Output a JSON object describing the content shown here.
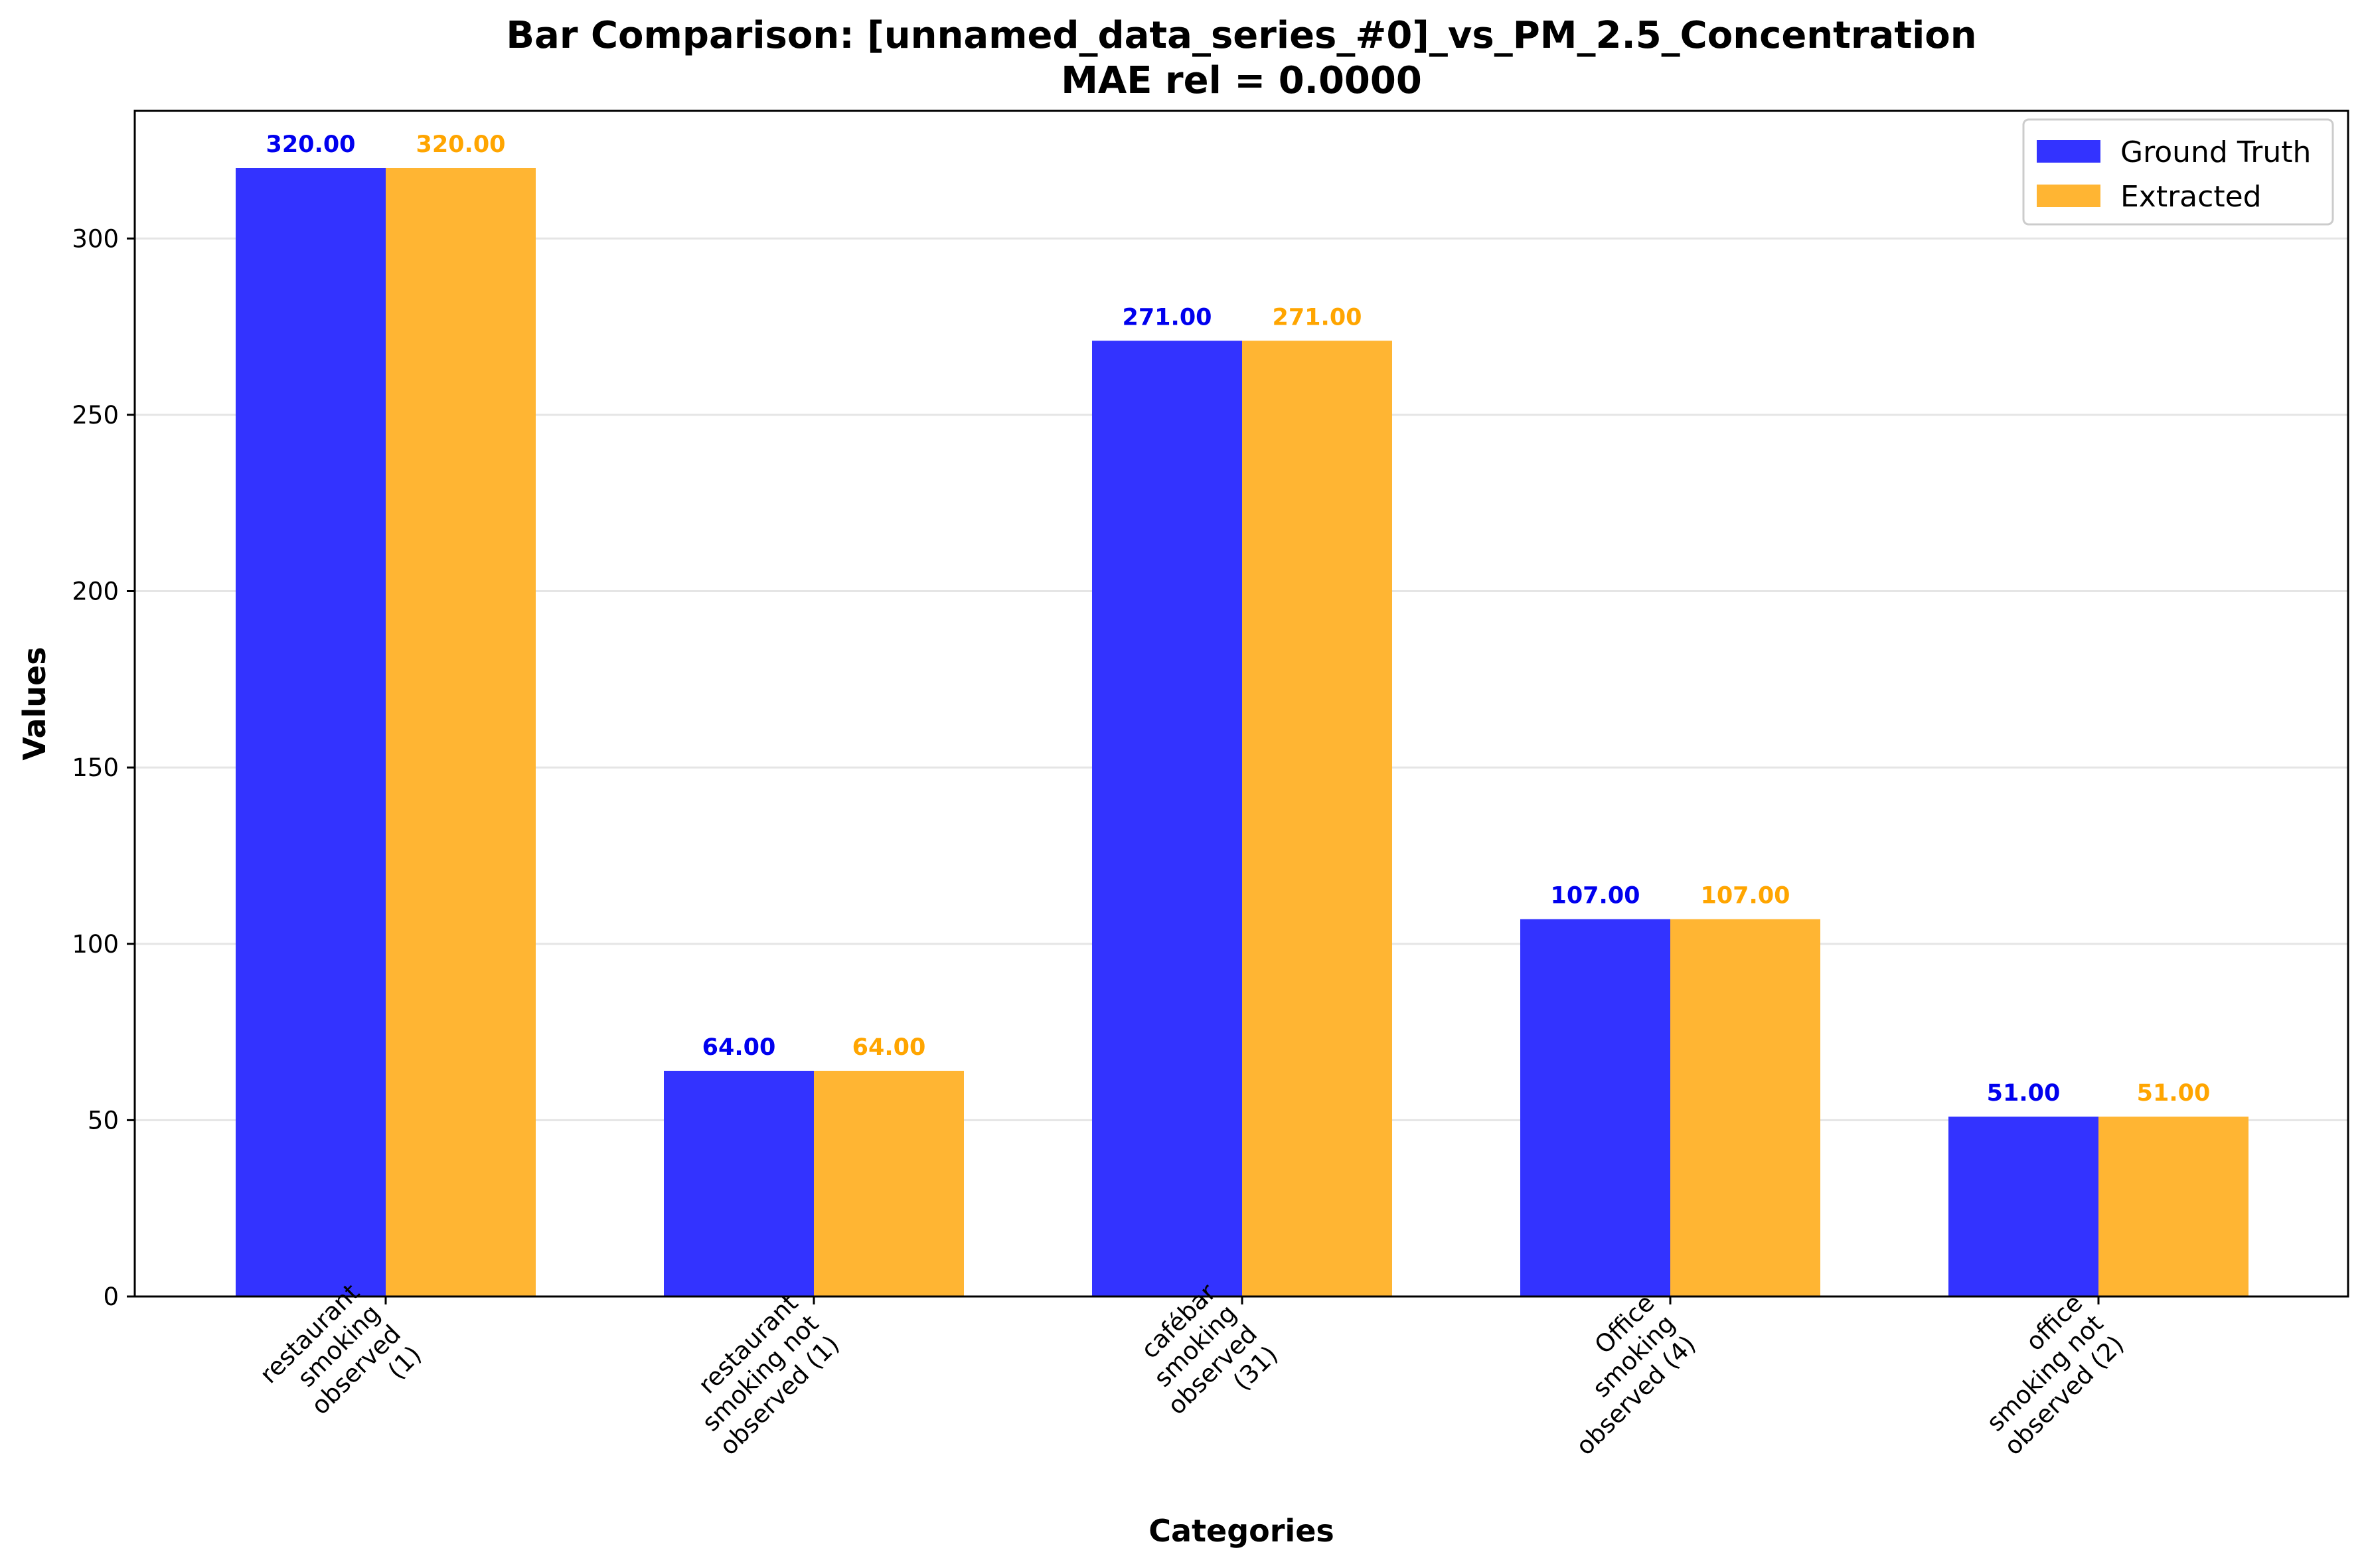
{
  "chart_data": {
    "type": "bar",
    "title": "Bar Comparison: [unnamed_data_series_#0]_vs_PM_2.5_Concentration",
    "subtitle": "MAE rel = 0.0000",
    "xlabel": "Categories",
    "ylabel": "Values",
    "ylim": [
      0,
      336
    ],
    "yticks": [
      "0",
      "50",
      "100",
      "150",
      "200",
      "250",
      "300"
    ],
    "grid": true,
    "legend_position": "top-right",
    "categories": [
      [
        "restaurant",
        "smoking",
        "observed",
        "(1)"
      ],
      [
        "restaurant",
        "smoking not",
        "observed (1)"
      ],
      [
        "cafébar",
        "smoking",
        "observed",
        "(31)"
      ],
      [
        "Office",
        "smoking",
        "observed (4)"
      ],
      [
        "office",
        "smoking not",
        "observed (2)"
      ]
    ],
    "series": [
      {
        "name": "Ground Truth",
        "color": "#3333ff",
        "label_color": "#0000ee",
        "values": [
          320,
          64,
          271,
          107,
          51
        ],
        "value_labels": [
          "320.00",
          "64.00",
          "271.00",
          "107.00",
          "51.00"
        ]
      },
      {
        "name": "Extracted",
        "color": "#ffb533",
        "label_color": "#ffa500",
        "values": [
          320,
          64,
          271,
          107,
          51
        ],
        "value_labels": [
          "320.00",
          "64.00",
          "271.00",
          "107.00",
          "51.00"
        ]
      }
    ]
  }
}
